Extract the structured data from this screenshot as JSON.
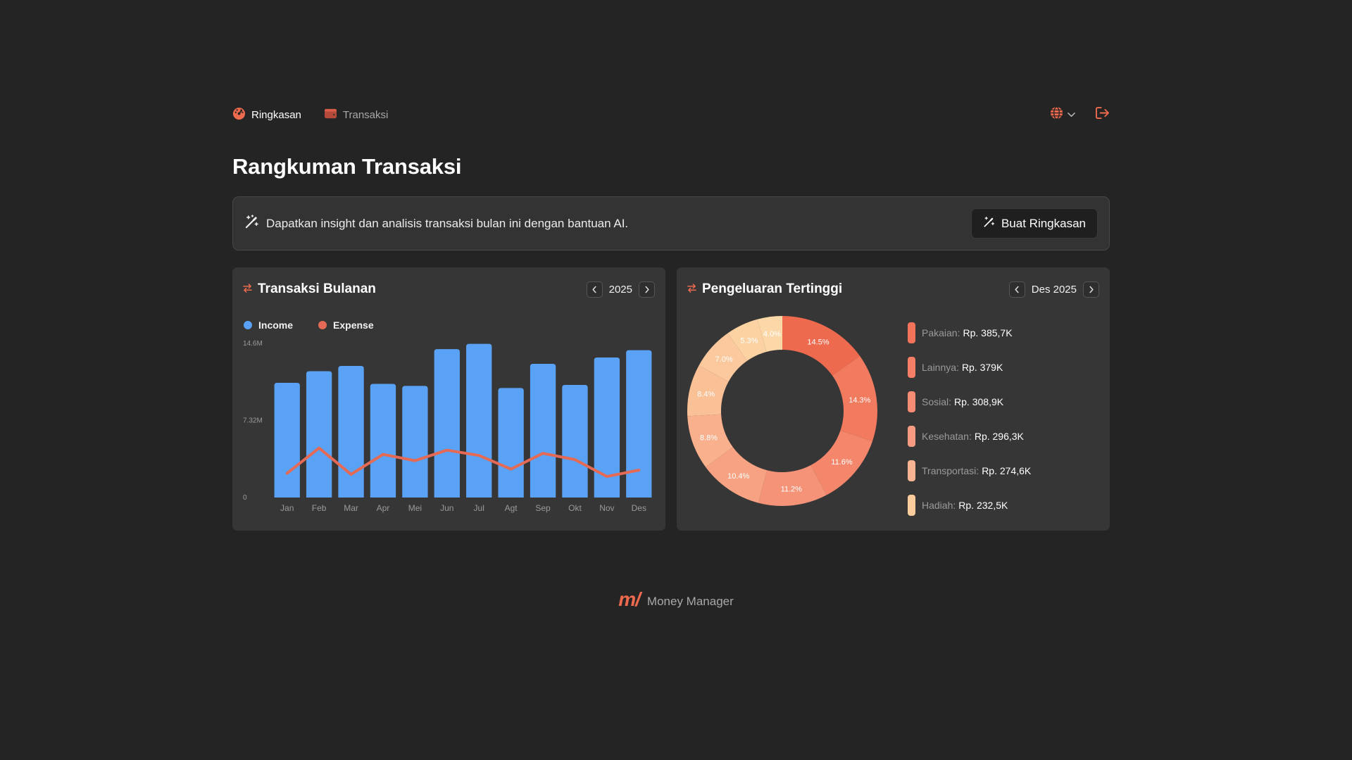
{
  "nav": {
    "items": [
      {
        "label": "Ringkasan",
        "icon": "dashboard-icon",
        "active": true
      },
      {
        "label": "Transaksi",
        "icon": "wallet-icon",
        "active": false
      }
    ]
  },
  "page_title": "Rangkuman Transaksi",
  "ai": {
    "text": "Dapatkan insight dan analisis transaksi bulan ini dengan bantuan AI.",
    "button_label": "Buat Ringkasan"
  },
  "monthly": {
    "title": "Transaksi Bulanan",
    "period": "2025",
    "legend": [
      "Income",
      "Expense"
    ]
  },
  "spending": {
    "title": "Pengeluaran Tertinggi",
    "period": "Des 2025",
    "categories": [
      {
        "name": "Pakaian:",
        "value": "Rp. 385,7K"
      },
      {
        "name": "Lainnya:",
        "value": "Rp. 379K"
      },
      {
        "name": "Sosial:",
        "value": "Rp. 308,9K"
      },
      {
        "name": "Kesehatan:",
        "value": "Rp. 296,3K"
      },
      {
        "name": "Transportasi:",
        "value": "Rp. 274,6K"
      },
      {
        "name": "Hadiah:",
        "value": "Rp. 232,5K"
      }
    ]
  },
  "footer": {
    "logo": "m/",
    "text": "Money Manager"
  },
  "colors": {
    "accent": "#ee6a4f",
    "income": "#5aa2f5",
    "expense": "#e56a55",
    "background": "#242424",
    "card": "#363636",
    "category_bars": [
      "#f2735a",
      "#f47f66",
      "#f68c73",
      "#f79b82",
      "#f9b591",
      "#fbcd9d"
    ]
  },
  "chart_data": [
    {
      "type": "bar",
      "title": "Transaksi Bulanan",
      "categories": [
        "Jan",
        "Feb",
        "Mar",
        "Apr",
        "Mei",
        "Jun",
        "Jul",
        "Agt",
        "Sep",
        "Okt",
        "Nov",
        "Des"
      ],
      "yticks": [
        "14.6M",
        "7.32M",
        "0"
      ],
      "ylim": [
        0,
        14.64
      ],
      "series": [
        {
          "name": "Income",
          "type": "bar",
          "values": [
            10.9,
            12.0,
            12.5,
            10.8,
            10.6,
            14.1,
            14.6,
            10.4,
            12.7,
            10.7,
            13.3,
            14.0
          ]
        },
        {
          "name": "Expense",
          "type": "line",
          "values": [
            2.3,
            4.7,
            2.2,
            4.1,
            3.5,
            4.5,
            4.0,
            2.7,
            4.2,
            3.6,
            2.0,
            2.6
          ]
        }
      ],
      "legend": "top-left",
      "grid": false
    },
    {
      "type": "pie",
      "title": "Pengeluaran Tertinggi",
      "donut": true,
      "labels": [
        "14.5%",
        "14.3%",
        "11.6%",
        "11.2%",
        "10.4%",
        "8.8%",
        "8.4%",
        "7.0%",
        "5.3%",
        "4.0%"
      ],
      "values": [
        14.5,
        14.3,
        11.6,
        11.2,
        10.4,
        8.8,
        8.4,
        7.0,
        5.3,
        4.0
      ],
      "colors": [
        "#ee6a4f",
        "#f27a5e",
        "#f4876b",
        "#f59379",
        "#f7a282",
        "#f9b08c",
        "#fac096",
        "#fbc99d",
        "#fcd2a3",
        "#fcd8a8"
      ]
    }
  ]
}
